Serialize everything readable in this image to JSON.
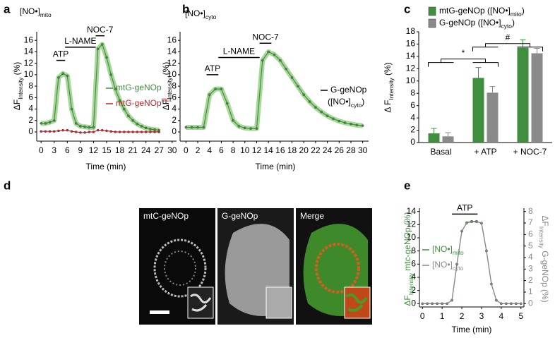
{
  "chart_data": [
    {
      "type": "line",
      "panel": "a",
      "title": {
        "text": "[NO•]",
        "sub": "mito"
      },
      "xlabel": {
        "text": "Time (min)"
      },
      "ylabel": {
        "text": "ΔF",
        "sub": "Intensity",
        "after": " (%)"
      },
      "x": [
        0,
        1,
        2,
        3,
        4,
        5,
        6,
        7,
        8,
        9,
        10,
        11,
        12,
        13,
        14,
        15,
        16,
        17,
        18,
        19,
        20,
        21,
        22,
        23,
        24,
        25,
        26,
        27
      ],
      "series": [
        {
          "name": {
            "text": "mtG-geNOp"
          },
          "color": "#3f8f3f",
          "band": true,
          "values": [
            1.5,
            1.5,
            1.7,
            2,
            9.5,
            10.2,
            9.8,
            4,
            1.5,
            1,
            0.9,
            0.8,
            0.8,
            14.5,
            15.3,
            13,
            10,
            7.5,
            5.5,
            4,
            2.8,
            2,
            1.4,
            1,
            0.7,
            0.5,
            0.4,
            0.3
          ]
        },
        {
          "name": {
            "text": "mtG-geNOp",
            "sup": "mut"
          },
          "color": "#c0262c",
          "band": false,
          "values": [
            0.1,
            0.1,
            0.1,
            0.1,
            0.2,
            0.3,
            0.3,
            0.1,
            0,
            -0.1,
            -0.1,
            0,
            0,
            0.3,
            0.3,
            0.2,
            0.1,
            0,
            0,
            0,
            0,
            0,
            0,
            0,
            0,
            0,
            0,
            0
          ]
        }
      ],
      "xlim": [
        -1,
        31
      ],
      "xticks": [
        0,
        3,
        6,
        9,
        12,
        15,
        18,
        21,
        24,
        27,
        30
      ],
      "ylim": [
        -1.6,
        17.5
      ],
      "yticks": [
        0,
        2,
        4,
        6,
        8,
        10,
        12,
        14,
        16
      ],
      "annotations": [
        {
          "text": "ATP",
          "x": [
            3.5,
            5.5
          ],
          "y": 12.5
        },
        {
          "text": "L-NAME",
          "x": [
            5.5,
            12.5
          ],
          "y": 14.8
        },
        {
          "text": "NOC-7",
          "x": [
            12.5,
            14.5
          ],
          "y": 16.8
        }
      ]
    },
    {
      "type": "line",
      "panel": "b",
      "title": {
        "text": "[NO•]",
        "sub": "cyto"
      },
      "xlabel": {
        "text": "Time (min)"
      },
      "ylabel": {
        "text": "ΔF",
        "sub": "Intensity",
        "after": " (%)"
      },
      "x": [
        0,
        1,
        2,
        3,
        4,
        5,
        6,
        7,
        8,
        9,
        10,
        11,
        12,
        13,
        14,
        15,
        16,
        17,
        18,
        19,
        20,
        21,
        22,
        23,
        24,
        25,
        26,
        27,
        28,
        29,
        30
      ],
      "series": [
        {
          "name": {
            "text": "G-geNOp"
          },
          "legend_note": {
            "text": "([NO•]",
            "sub": "cyto",
            "after": ")"
          },
          "color": "#3f8f3f",
          "band": true,
          "values": [
            0.8,
            0.8,
            0.8,
            0.8,
            6.5,
            7.5,
            7.5,
            5,
            2,
            1,
            0.7,
            0.6,
            0.6,
            12.5,
            14,
            13.5,
            12.5,
            11,
            9.5,
            8,
            6.5,
            5.3,
            4.3,
            3.5,
            2.8,
            2.3,
            1.9,
            1.6,
            1.4,
            1.2,
            1.1
          ]
        }
      ],
      "xlim": [
        -1,
        31
      ],
      "xticks": [
        0,
        2,
        4,
        6,
        8,
        10,
        12,
        14,
        16,
        18,
        20,
        22,
        24,
        26,
        28,
        30
      ],
      "ylim": [
        -1.6,
        17.5
      ],
      "yticks": [
        0,
        2,
        4,
        6,
        8,
        10,
        12,
        14,
        16
      ],
      "annotations": [
        {
          "text": "ATP",
          "x": [
            3.5,
            5.5
          ],
          "y": 10
        },
        {
          "text": "L-NAME",
          "x": [
            5.5,
            12.5
          ],
          "y": 13
        },
        {
          "text": "NOC-7",
          "x": [
            12.5,
            14.5
          ],
          "y": 15.5
        }
      ]
    },
    {
      "type": "bar",
      "panel": "c",
      "ylabel": {
        "text": "Δ F",
        "sub": "Intensity",
        "after": " (%)"
      },
      "categories": [
        "Basal",
        "+ ATP",
        "+ NOC-7"
      ],
      "series": [
        {
          "name": {
            "text": "mtG-geNOp ([NO•]",
            "sub": "mito",
            "after": ")"
          },
          "color": "#3f8f3f",
          "values": [
            1.5,
            10.5,
            15.4
          ],
          "errors": [
            0.8,
            1.7,
            1.3
          ]
        },
        {
          "name": {
            "text": "G-geNOp ([NO•]",
            "sub": "cyto",
            "after": ")"
          },
          "color": "#8a8a8a",
          "values": [
            1,
            8.1,
            14.5
          ],
          "errors": [
            0.6,
            1,
            0.8
          ]
        }
      ],
      "ylim": [
        0,
        18
      ],
      "yticks": [
        0,
        2,
        4,
        6,
        8,
        10,
        12,
        14,
        16,
        18
      ],
      "annotations": [
        {
          "text": "*",
          "from": 0,
          "to": 1,
          "y": 13
        },
        {
          "text": "#",
          "from": 1,
          "to": 2,
          "y": 15.5
        }
      ]
    },
    {
      "type": "line",
      "panel": "e",
      "xlabel": {
        "text": "Time (min)"
      },
      "ylabel": {
        "text": "ΔF",
        "sub": "Intensity",
        "after": " mtc-geNOp (%)"
      },
      "y2label": {
        "text": "ΔF",
        "sub": "Intensity",
        "after": " G-geNOp (%)"
      },
      "x": [
        0,
        0.25,
        0.5,
        0.75,
        1,
        1.25,
        1.5,
        1.75,
        2,
        2.25,
        2.5,
        2.75,
        3,
        3.25,
        3.5,
        3.75,
        4,
        4.25,
        4.5,
        4.75,
        5
      ],
      "series": [
        {
          "name": {
            "text": "[NO•]",
            "sub": "mito"
          },
          "color": "#3f8f3f",
          "band": false,
          "values": [
            0,
            0,
            0,
            0,
            0,
            0,
            0.5,
            6,
            11,
            12.3,
            12.5,
            12.5,
            12.2,
            8,
            3,
            0.5,
            0,
            0,
            0,
            0,
            0
          ]
        },
        {
          "name": {
            "text": "[NO•]",
            "sub": "cyto"
          },
          "color": "#8a8a8a",
          "band": false,
          "axis": "y2",
          "values": [
            0,
            0,
            0,
            0,
            0,
            0,
            0.3,
            3.4,
            6.3,
            7,
            7.1,
            7.1,
            7,
            4.6,
            1.7,
            0.3,
            0,
            0,
            0,
            0,
            0
          ]
        }
      ],
      "xlim": [
        -0.15,
        5.15
      ],
      "xticks": [
        0,
        1,
        2,
        3,
        4,
        5
      ],
      "ylim": [
        -0.5,
        14.5
      ],
      "yticks": [
        0,
        2,
        4,
        6,
        8,
        10,
        12,
        14
      ],
      "y2lim": [
        -0.29,
        8.29
      ],
      "y2ticks": [
        0,
        1,
        2,
        3,
        4,
        5,
        6,
        7,
        8
      ],
      "annotations": [
        {
          "text": "ATP",
          "x": [
            1.5,
            2.8
          ],
          "y": 13.6
        }
      ]
    }
  ],
  "images": {
    "panel": "d",
    "labels": [
      "mtC-geNOp",
      "G-geNOp",
      "Merge"
    ]
  }
}
